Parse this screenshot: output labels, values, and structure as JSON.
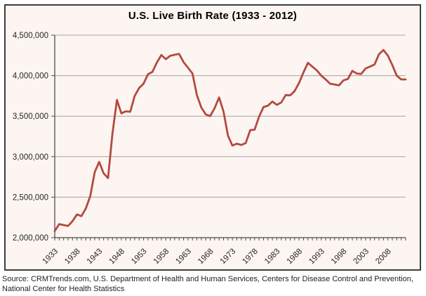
{
  "title": "U.S. Live Birth Rate (1933 - 2012)",
  "source": {
    "line1": "Source: CRMTrends.com, U.S. Department of Health and Human Services, Centers for Disease Control and Prevention,",
    "line2": "National Center for Health Statistics"
  },
  "colors": {
    "line": "#b4493f",
    "gridline": "#a3a3a3",
    "axis": "#4d4d4d",
    "plot_background": "#fcf5f1",
    "box_border": "#3e3e3e",
    "label_text": "#262626"
  },
  "chart_data": {
    "type": "line",
    "title": "U.S. Live Birth Rate (1933 - 2012)",
    "xlabel": "",
    "ylabel": "",
    "x": [
      1933,
      1934,
      1935,
      1936,
      1937,
      1938,
      1939,
      1940,
      1941,
      1942,
      1943,
      1944,
      1945,
      1946,
      1947,
      1948,
      1949,
      1950,
      1951,
      1952,
      1953,
      1954,
      1955,
      1956,
      1957,
      1958,
      1959,
      1960,
      1961,
      1962,
      1963,
      1964,
      1965,
      1966,
      1967,
      1968,
      1969,
      1970,
      1971,
      1972,
      1973,
      1974,
      1975,
      1976,
      1977,
      1978,
      1979,
      1980,
      1981,
      1982,
      1983,
      1984,
      1985,
      1986,
      1987,
      1988,
      1989,
      1990,
      1991,
      1992,
      1993,
      1994,
      1995,
      1996,
      1997,
      1998,
      1999,
      2000,
      2001,
      2002,
      2003,
      2004,
      2005,
      2006,
      2007,
      2008,
      2009,
      2010,
      2011,
      2012
    ],
    "values": [
      2081232,
      2167636,
      2155105,
      2144790,
      2203337,
      2286962,
      2265588,
      2360399,
      2513427,
      2808996,
      2934860,
      2794800,
      2735456,
      3288672,
      3699940,
      3535068,
      3559529,
      3554149,
      3750850,
      3846986,
      3902120,
      4017362,
      4047295,
      4163090,
      4254784,
      4203812,
      4244796,
      4257850,
      4268326,
      4167362,
      4098020,
      4027490,
      3760358,
      3606274,
      3520959,
      3501564,
      3600206,
      3731386,
      3555970,
      3258411,
      3136965,
      3159958,
      3144198,
      3167788,
      3326632,
      3333279,
      3494398,
      3612258,
      3629238,
      3680537,
      3638933,
      3669141,
      3760561,
      3756547,
      3809394,
      3909510,
      4040958,
      4158212,
      4110907,
      4065014,
      4000240,
      3952767,
      3899589,
      3891494,
      3880894,
      3941553,
      3959417,
      4058814,
      4025933,
      4021726,
      4089950,
      4112052,
      4138349,
      4265555,
      4316233,
      4247694,
      4130665,
      3999386,
      3953590,
      3952841
    ],
    "ylim": [
      2000000,
      4500000
    ],
    "ytick_interval": 500000,
    "ytick_labels": [
      "2,000,000",
      "2,500,000",
      "3,000,000",
      "3,500,000",
      "4,000,000",
      "4,500,000"
    ],
    "xtick_labels": [
      "1933",
      "1938",
      "1943",
      "1948",
      "1953",
      "1958",
      "1963",
      "1968",
      "1973",
      "1978",
      "1983",
      "1988",
      "1993",
      "1998",
      "2003",
      "2008"
    ],
    "grid": "horizontal",
    "legend": "none"
  }
}
